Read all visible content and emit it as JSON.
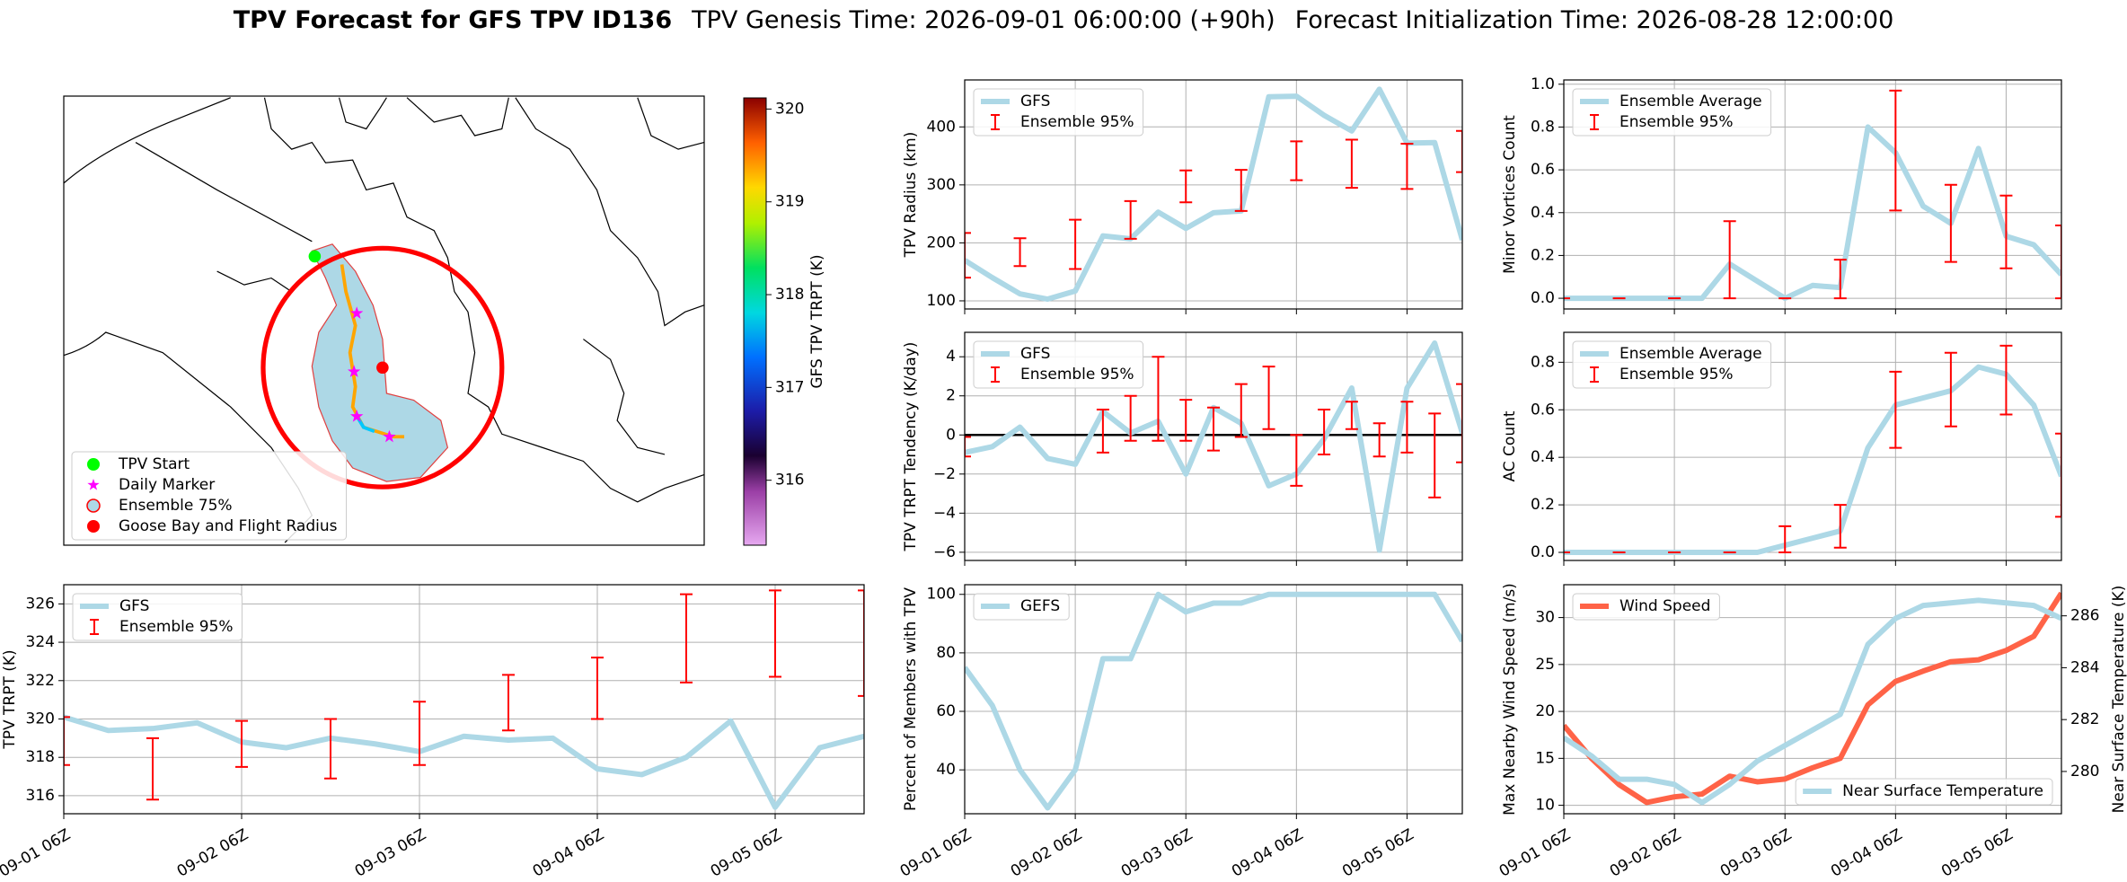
{
  "header": {
    "title": "TPV Forecast for GFS TPV ID136",
    "genesis": "TPV Genesis Time: 2026-09-01 06:00:00 (+90h)",
    "init": "Forecast Initialization Time: 2026-08-28 12:00:00"
  },
  "chart_data": [
    {
      "type": "map",
      "legend_loc": "lower left",
      "legend": [
        {
          "name": "TPV Start",
          "color": "#00ff00",
          "marker": "circle"
        },
        {
          "name": "Daily Marker",
          "color": "#ff00ff",
          "marker": "star"
        },
        {
          "name": "Ensemble 75%",
          "color": "#add8e6",
          "edge": "#ff0000",
          "marker": "circle"
        },
        {
          "name": "Goose Bay and Flight Radius",
          "color": "#ff0000",
          "marker": "circle"
        }
      ],
      "colorbar": {
        "label": "GFS TPV TRPT (K)",
        "lim": [
          315.3,
          320.12
        ],
        "ticks": [
          316,
          317,
          318,
          319,
          320
        ]
      }
    },
    {
      "type": "line",
      "ylabel": "TPV Radius (km)",
      "grid": true,
      "legend": "upper left",
      "xtick_labels": false,
      "x": [
        "09-01 06Z",
        "09-01 12Z",
        "09-01 18Z",
        "09-02 00Z",
        "09-02 06Z",
        "09-02 12Z",
        "09-02 18Z",
        "09-03 00Z",
        "09-03 06Z",
        "09-03 12Z",
        "09-03 18Z",
        "09-04 00Z",
        "09-04 06Z",
        "09-04 12Z",
        "09-04 18Z",
        "09-05 00Z",
        "09-05 06Z",
        "09-05 12Z",
        "09-05 18Z"
      ],
      "xlim": [
        "09-01 06Z",
        "09-05 18Z"
      ],
      "xticks": [
        "09-01 06Z",
        "09-02 06Z",
        "09-03 06Z",
        "09-04 06Z",
        "09-05 06Z"
      ],
      "ylim": [
        86,
        481
      ],
      "yticks": [
        100,
        200,
        300,
        400
      ],
      "series": [
        {
          "name": "GFS",
          "color": "#add8e6",
          "values": [
            170,
            140,
            112,
            103,
            117,
            212,
            207,
            253,
            225,
            252,
            255,
            452,
            453,
            420,
            393,
            465,
            372,
            373,
            205
          ]
        },
        {
          "name": "Ensemble 95%",
          "color": "#ff0000",
          "type": "errorbar",
          "x": [
            "09-01 06Z",
            "09-01 18Z",
            "09-02 06Z",
            "09-02 18Z",
            "09-03 06Z",
            "09-03 18Z",
            "09-04 06Z",
            "09-04 18Z",
            "09-05 06Z",
            "09-05 18Z"
          ],
          "low": [
            140,
            160,
            155,
            207,
            270,
            255,
            308,
            295,
            293,
            322
          ],
          "high": [
            217,
            208,
            240,
            272,
            325,
            326,
            375,
            378,
            371,
            393
          ]
        }
      ]
    },
    {
      "type": "line",
      "ylabel": "Minor Vortices Count",
      "grid": true,
      "legend": "upper left",
      "xtick_labels": false,
      "x": [
        "09-01 06Z",
        "09-01 12Z",
        "09-01 18Z",
        "09-02 00Z",
        "09-02 06Z",
        "09-02 12Z",
        "09-02 18Z",
        "09-03 00Z",
        "09-03 06Z",
        "09-03 12Z",
        "09-03 18Z",
        "09-04 00Z",
        "09-04 06Z",
        "09-04 12Z",
        "09-04 18Z",
        "09-05 00Z",
        "09-05 06Z",
        "09-05 12Z",
        "09-05 18Z"
      ],
      "xlim": [
        "09-01 06Z",
        "09-05 18Z"
      ],
      "xticks": [
        "09-01 06Z",
        "09-02 06Z",
        "09-03 06Z",
        "09-04 06Z",
        "09-05 06Z"
      ],
      "ylim": [
        -0.05,
        1.02
      ],
      "yticks": [
        {
          "value": 0,
          "label": "0.0"
        },
        0.2,
        0.4,
        0.6,
        0.8,
        {
          "value": 1,
          "label": "1.0"
        }
      ],
      "series": [
        {
          "name": "Ensemble Average",
          "color": "#add8e6",
          "values": [
            0,
            0,
            0,
            0,
            0,
            0,
            0.16,
            0.08,
            0,
            0.06,
            0.05,
            0.8,
            0.68,
            0.43,
            0.35,
            0.7,
            0.29,
            0.25,
            0.11
          ]
        },
        {
          "name": "Ensemble 95%",
          "color": "#ff0000",
          "type": "errorbar",
          "x": [
            "09-01 06Z",
            "09-01 18Z",
            "09-02 06Z",
            "09-02 18Z",
            "09-03 06Z",
            "09-03 18Z",
            "09-04 06Z",
            "09-04 18Z",
            "09-05 06Z",
            "09-05 18Z"
          ],
          "low": [
            0,
            0,
            0,
            0,
            0,
            0,
            0.41,
            0.17,
            0.14,
            0
          ],
          "high": [
            0,
            0,
            0,
            0.36,
            0,
            0.18,
            0.97,
            0.53,
            0.48,
            0.34
          ]
        }
      ]
    },
    {
      "type": "line",
      "ylabel": "TPV TRPT Tendency (K/day)",
      "grid": true,
      "legend": "upper left",
      "xtick_labels": false,
      "hline": 0,
      "x": [
        "09-01 06Z",
        "09-01 12Z",
        "09-01 18Z",
        "09-02 00Z",
        "09-02 06Z",
        "09-02 12Z",
        "09-02 18Z",
        "09-03 00Z",
        "09-03 06Z",
        "09-03 12Z",
        "09-03 18Z",
        "09-04 00Z",
        "09-04 06Z",
        "09-04 12Z",
        "09-04 18Z",
        "09-05 00Z",
        "09-05 06Z",
        "09-05 12Z",
        "09-05 18Z"
      ],
      "xlim": [
        "09-01 06Z",
        "09-05 18Z"
      ],
      "xticks": [
        "09-01 06Z",
        "09-02 06Z",
        "09-03 06Z",
        "09-04 06Z",
        "09-05 06Z"
      ],
      "ylim": [
        -6.42,
        5.25
      ],
      "yticks": [
        {
          "value": -6,
          "label": "−6"
        },
        {
          "value": -4,
          "label": "−4"
        },
        {
          "value": -2,
          "label": "−2"
        },
        0,
        2,
        4
      ],
      "series": [
        {
          "name": "GFS",
          "color": "#add8e6",
          "values": [
            -0.9,
            -0.6,
            0.4,
            -1.2,
            -1.5,
            1.2,
            0.1,
            0.7,
            -2.0,
            1.4,
            0.6,
            -2.6,
            -2.0,
            -0.2,
            2.4,
            -5.9,
            2.4,
            4.7,
            0.1
          ]
        },
        {
          "name": "Ensemble 95%",
          "color": "#ff0000",
          "type": "errorbar",
          "x": [
            "09-01 06Z",
            "09-01 12Z",
            "09-01 18Z",
            "09-02 00Z",
            "09-02 06Z",
            "09-02 12Z",
            "09-02 18Z",
            "09-03 00Z",
            "09-03 06Z",
            "09-03 12Z",
            "09-03 18Z",
            "09-04 00Z",
            "09-04 06Z",
            "09-04 12Z",
            "09-04 18Z",
            "09-05 00Z",
            "09-05 06Z",
            "09-05 12Z",
            "09-05 18Z"
          ],
          "low": [
            -1.1,
            null,
            null,
            null,
            null,
            -0.9,
            -0.3,
            -0.3,
            -0.3,
            -0.8,
            -0.1,
            0.3,
            -2.6,
            -1.0,
            0.3,
            -1.1,
            -0.9,
            -3.2,
            -1.4
          ],
          "high": [
            -0.1,
            null,
            null,
            null,
            null,
            1.3,
            2.0,
            4.0,
            1.8,
            1.4,
            2.6,
            3.5,
            0,
            1.3,
            1.7,
            0.6,
            1.7,
            1.1,
            2.6
          ]
        }
      ]
    },
    {
      "type": "line",
      "ylabel": "AC Count",
      "grid": true,
      "legend": "upper left",
      "xtick_labels": false,
      "x": [
        "09-01 06Z",
        "09-01 12Z",
        "09-01 18Z",
        "09-02 00Z",
        "09-02 06Z",
        "09-02 12Z",
        "09-02 18Z",
        "09-03 00Z",
        "09-03 06Z",
        "09-03 12Z",
        "09-03 18Z",
        "09-04 00Z",
        "09-04 06Z",
        "09-04 12Z",
        "09-04 18Z",
        "09-05 00Z",
        "09-05 06Z",
        "09-05 12Z",
        "09-05 18Z"
      ],
      "xlim": [
        "09-01 06Z",
        "09-05 18Z"
      ],
      "xticks": [
        "09-01 06Z",
        "09-02 06Z",
        "09-03 06Z",
        "09-04 06Z",
        "09-05 06Z"
      ],
      "ylim": [
        -0.034,
        0.926
      ],
      "yticks": [
        {
          "value": 0,
          "label": "0.0"
        },
        0.2,
        0.4,
        0.6,
        0.8
      ],
      "series": [
        {
          "name": "Ensemble Average",
          "color": "#add8e6",
          "values": [
            0,
            0,
            0,
            0,
            0,
            0,
            0,
            0,
            0.03,
            0.06,
            0.09,
            0.44,
            0.62,
            0.65,
            0.68,
            0.78,
            0.75,
            0.62,
            0.32
          ]
        },
        {
          "name": "Ensemble 95%",
          "color": "#ff0000",
          "type": "errorbar",
          "x": [
            "09-01 06Z",
            "09-01 18Z",
            "09-02 06Z",
            "09-02 18Z",
            "09-03 06Z",
            "09-03 18Z",
            "09-04 06Z",
            "09-04 18Z",
            "09-05 06Z",
            "09-05 18Z"
          ],
          "low": [
            0,
            0,
            0,
            0,
            0,
            0.02,
            0.44,
            0.53,
            0.58,
            0.15
          ],
          "high": [
            0,
            0,
            0,
            0,
            0.11,
            0.2,
            0.76,
            0.84,
            0.87,
            0.5
          ]
        }
      ]
    },
    {
      "type": "line",
      "ylabel": "TPV TRPT (K)",
      "grid": true,
      "legend": "upper left",
      "x": [
        "09-01 06Z",
        "09-01 12Z",
        "09-01 18Z",
        "09-02 00Z",
        "09-02 06Z",
        "09-02 12Z",
        "09-02 18Z",
        "09-03 00Z",
        "09-03 06Z",
        "09-03 12Z",
        "09-03 18Z",
        "09-04 00Z",
        "09-04 06Z",
        "09-04 12Z",
        "09-04 18Z",
        "09-05 00Z",
        "09-05 06Z",
        "09-05 12Z",
        "09-05 18Z"
      ],
      "xlim": [
        "09-01 06Z",
        "09-05 18Z"
      ],
      "xticks": [
        "09-01 06Z",
        "09-02 06Z",
        "09-03 06Z",
        "09-04 06Z",
        "09-05 06Z"
      ],
      "ylim": [
        315.06,
        327
      ],
      "yticks": [
        316,
        318,
        320,
        322,
        324,
        326
      ],
      "series": [
        {
          "name": "GFS",
          "color": "#add8e6",
          "values": [
            320.1,
            319.4,
            319.5,
            319.8,
            318.8,
            318.5,
            319.0,
            318.7,
            318.3,
            319.1,
            318.9,
            319.0,
            317.4,
            317.1,
            318.0,
            319.9,
            315.4,
            318.5,
            319.1
          ]
        },
        {
          "name": "Ensemble 95%",
          "color": "#ff0000",
          "type": "errorbar",
          "x": [
            "09-01 06Z",
            "09-01 18Z",
            "09-02 06Z",
            "09-02 18Z",
            "09-03 06Z",
            "09-03 18Z",
            "09-04 06Z",
            "09-04 18Z",
            "09-05 06Z",
            "09-05 18Z"
          ],
          "low": [
            317.6,
            315.8,
            317.5,
            316.9,
            317.6,
            319.4,
            320.0,
            321.9,
            322.2,
            321.2
          ],
          "high": [
            320.1,
            319.0,
            319.9,
            320.0,
            320.9,
            322.3,
            323.2,
            326.5,
            326.7,
            326.7
          ]
        }
      ]
    },
    {
      "type": "line",
      "ylabel": "Percent of Members with TPV",
      "grid": true,
      "legend": "upper left",
      "x": [
        "09-01 06Z",
        "09-01 12Z",
        "09-01 18Z",
        "09-02 00Z",
        "09-02 06Z",
        "09-02 12Z",
        "09-02 18Z",
        "09-03 00Z",
        "09-03 06Z",
        "09-03 12Z",
        "09-03 18Z",
        "09-04 00Z",
        "09-04 06Z",
        "09-04 12Z",
        "09-04 18Z",
        "09-05 00Z",
        "09-05 06Z",
        "09-05 12Z",
        "09-05 18Z"
      ],
      "xlim": [
        "09-01 06Z",
        "09-05 18Z"
      ],
      "xticks": [
        "09-01 06Z",
        "09-02 06Z",
        "09-03 06Z",
        "09-04 06Z",
        "09-05 06Z"
      ],
      "ylim": [
        25,
        103.3
      ],
      "yticks": [
        40,
        60,
        80,
        100
      ],
      "series": [
        {
          "name": "GEFS",
          "color": "#add8e6",
          "values": [
            75,
            62,
            40,
            27,
            40,
            78,
            78,
            100,
            94,
            97,
            97,
            100,
            100,
            100,
            100,
            100,
            100,
            100,
            84
          ]
        }
      ]
    },
    {
      "type": "line",
      "ylabel": "Max Nearby Wind Speed (m/s)",
      "ylabel_color": "#ff6347",
      "y2label": "Near Surface Temperature (K)",
      "y2label_color": "#4169e1",
      "grid": true,
      "x": [
        "09-01 06Z",
        "09-01 12Z",
        "09-01 18Z",
        "09-02 00Z",
        "09-02 06Z",
        "09-02 12Z",
        "09-02 18Z",
        "09-03 00Z",
        "09-03 06Z",
        "09-03 12Z",
        "09-03 18Z",
        "09-04 00Z",
        "09-04 06Z",
        "09-04 12Z",
        "09-04 18Z",
        "09-05 00Z",
        "09-05 06Z",
        "09-05 12Z",
        "09-05 18Z"
      ],
      "xlim": [
        "09-01 06Z",
        "09-05 18Z"
      ],
      "xticks": [
        "09-01 06Z",
        "09-02 06Z",
        "09-03 06Z",
        "09-04 06Z",
        "09-05 06Z"
      ],
      "ylim": [
        9.1,
        33.5
      ],
      "yticks": [
        10,
        15,
        20,
        25,
        30
      ],
      "y2lim": [
        278.37,
        287.2
      ],
      "y2ticks": [
        280,
        282,
        284,
        286
      ],
      "series": [
        {
          "name": "Wind Speed",
          "color": "#ff6347",
          "legend": "upper left",
          "values": [
            18.5,
            15,
            12.2,
            10.3,
            10.9,
            11.2,
            13.1,
            12.5,
            12.8,
            14,
            15,
            20.7,
            23.2,
            24.3,
            25.3,
            25.5,
            26.5,
            28,
            32.6
          ]
        },
        {
          "name": "Near Surface Temperature",
          "color": "#add8e6",
          "axis": "y2",
          "legend": "lower right",
          "values": [
            281.3,
            280.6,
            279.7,
            279.7,
            279.5,
            278.8,
            279.5,
            280.4,
            281.0,
            281.6,
            282.2,
            284.9,
            285.9,
            286.4,
            286.5,
            286.6,
            286.5,
            286.4,
            285.9
          ]
        }
      ]
    }
  ]
}
